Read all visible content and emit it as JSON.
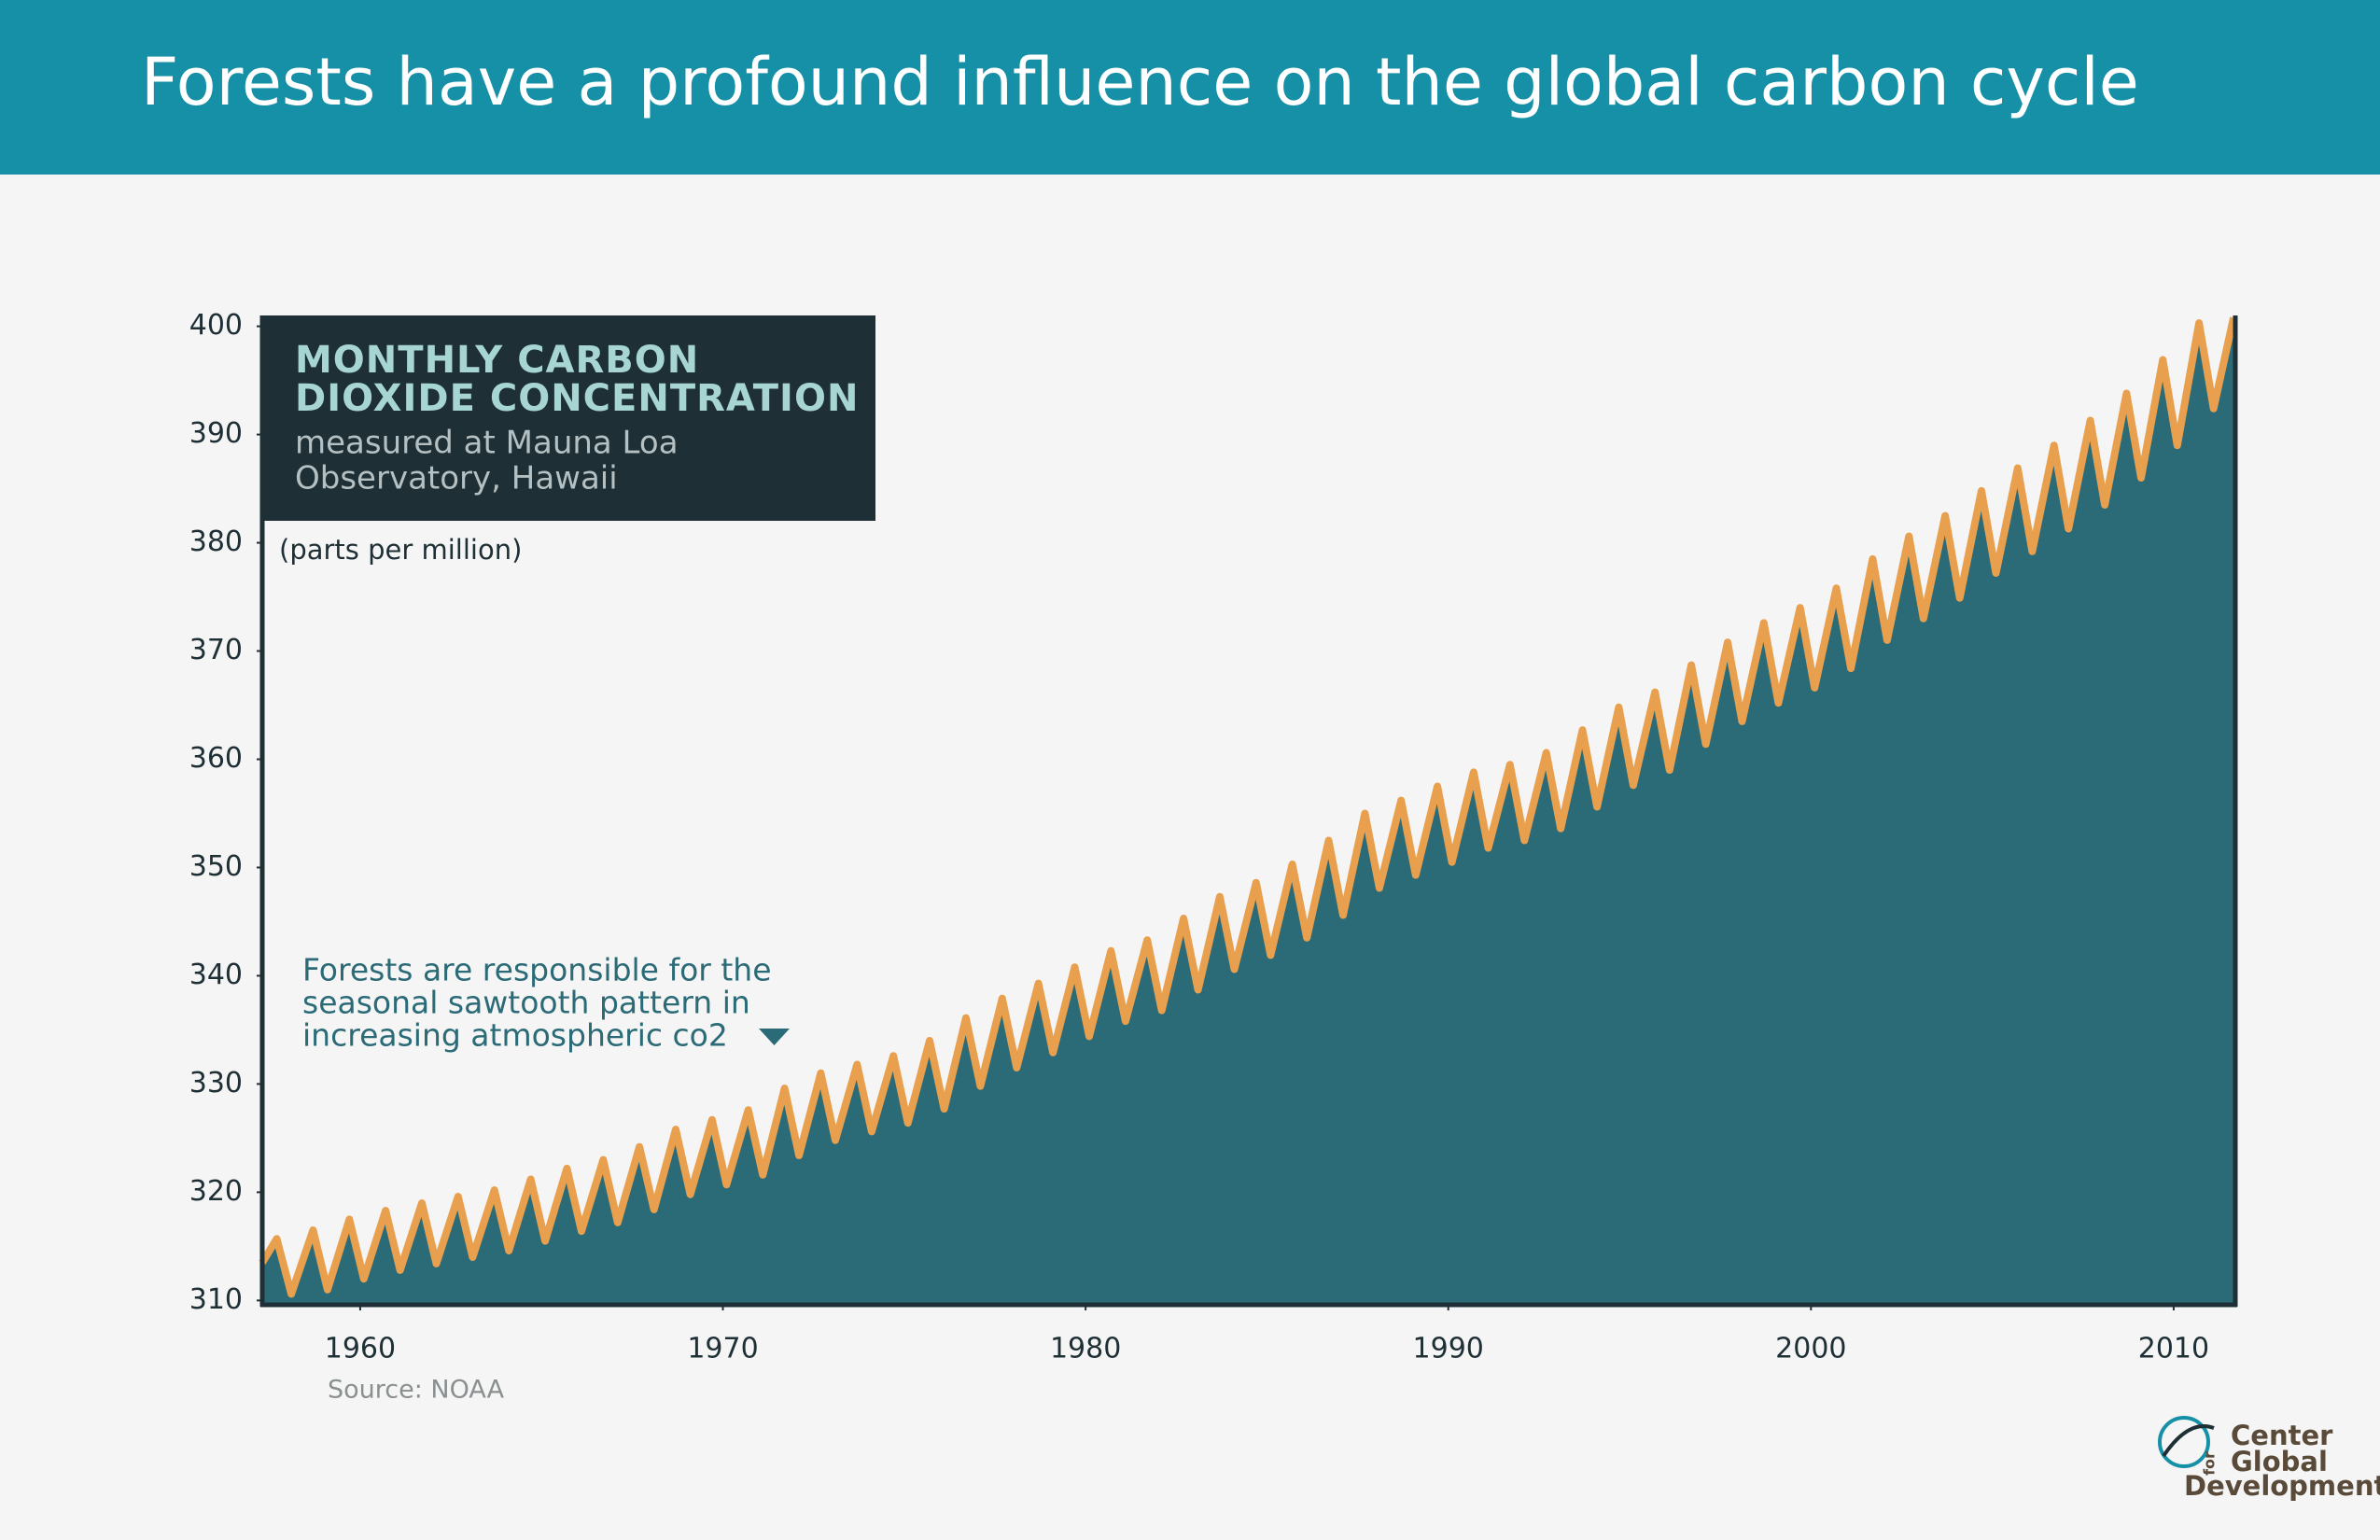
{
  "header": {
    "title": "Forests have a profound influence on the global carbon cycle"
  },
  "chart_data": {
    "type": "area",
    "title": [
      "MONTHLY CARBON",
      "DIOXIDE CONCENTRATION"
    ],
    "subtitle": [
      "measured at Mauna Loa",
      "Observatory, Hawaii"
    ],
    "y_label": "(parts per million)",
    "annotation": [
      "Forests are responsible for the",
      "seasonal sawtooth pattern in",
      "increasing atmospheric co2"
    ],
    "source": "Source: NOAA",
    "color": "#2b6a77",
    "line_color": "#e8a04e",
    "xlim": [
      1957.3,
      2011.7
    ],
    "ylim": [
      309.6,
      401
    ],
    "xticks": [
      1960,
      1970,
      1980,
      1990,
      2000,
      2010
    ],
    "yticks": [
      310,
      320,
      330,
      340,
      350,
      360,
      370,
      380,
      390,
      400
    ],
    "x": [
      1957.3,
      1957.7,
      1958.1,
      1958.7,
      1959.1,
      1959.7,
      1960.1,
      1960.7,
      1961.1,
      1961.7,
      1962.1,
      1962.7,
      1963.1,
      1963.7,
      1964.1,
      1964.7,
      1965.1,
      1965.7,
      1966.1,
      1966.7,
      1967.1,
      1967.7,
      1968.1,
      1968.7,
      1969.1,
      1969.7,
      1970.1,
      1970.7,
      1971.1,
      1971.7,
      1972.1,
      1972.7,
      1973.1,
      1973.7,
      1974.1,
      1974.7,
      1975.1,
      1975.7,
      1976.1,
      1976.7,
      1977.1,
      1977.7,
      1978.1,
      1978.7,
      1979.1,
      1979.7,
      1980.1,
      1980.7,
      1981.1,
      1981.7,
      1982.1,
      1982.7,
      1983.1,
      1983.7,
      1984.1,
      1984.7,
      1985.1,
      1985.7,
      1986.1,
      1986.7,
      1987.1,
      1987.7,
      1988.1,
      1988.7,
      1989.1,
      1989.7,
      1990.1,
      1990.7,
      1991.1,
      1991.7,
      1992.1,
      1992.7,
      1993.1,
      1993.7,
      1994.1,
      1994.7,
      1995.1,
      1995.7,
      1996.1,
      1996.7,
      1997.1,
      1997.7,
      1998.1,
      1998.7,
      1999.1,
      1999.7,
      2000.1,
      2000.7,
      2001.1,
      2001.7,
      2002.1,
      2002.7,
      2003.1,
      2003.7,
      2004.1,
      2004.7,
      2005.1,
      2005.7,
      2006.1,
      2006.7,
      2007.1,
      2007.7,
      2008.1,
      2008.7,
      2009.1,
      2009.7,
      2010.1,
      2010.7,
      2011.1,
      2011.65
    ],
    "values": [
      313.5,
      315.7,
      310.6,
      316.5,
      311.0,
      317.5,
      312.0,
      318.3,
      312.8,
      319.0,
      313.4,
      319.6,
      314.0,
      320.2,
      314.6,
      321.2,
      315.5,
      322.2,
      316.4,
      323.0,
      317.2,
      324.2,
      318.4,
      325.8,
      319.8,
      326.7,
      320.7,
      327.6,
      321.6,
      329.6,
      323.4,
      331.0,
      324.8,
      331.8,
      325.6,
      332.6,
      326.4,
      334.0,
      327.7,
      336.1,
      329.8,
      337.9,
      331.5,
      339.3,
      332.9,
      340.8,
      334.4,
      342.3,
      335.8,
      343.3,
      336.8,
      345.3,
      338.7,
      347.3,
      340.6,
      348.6,
      341.9,
      350.3,
      343.5,
      352.5,
      345.6,
      355.0,
      348.1,
      356.2,
      349.3,
      357.5,
      350.5,
      358.8,
      351.8,
      359.5,
      352.5,
      360.6,
      353.6,
      362.7,
      355.6,
      364.8,
      357.6,
      366.2,
      359.0,
      368.7,
      361.4,
      370.8,
      363.5,
      372.6,
      365.2,
      374.0,
      366.6,
      375.8,
      368.4,
      378.5,
      371.0,
      380.6,
      373.0,
      382.5,
      374.9,
      384.8,
      377.2,
      386.9,
      379.2,
      389.0,
      381.3,
      391.3,
      383.5,
      393.8,
      386.0,
      396.9,
      389.0,
      400.3,
      392.4,
      400.8
    ]
  },
  "logo": {
    "lines": [
      "Center",
      "for",
      "Global",
      "Development"
    ]
  }
}
